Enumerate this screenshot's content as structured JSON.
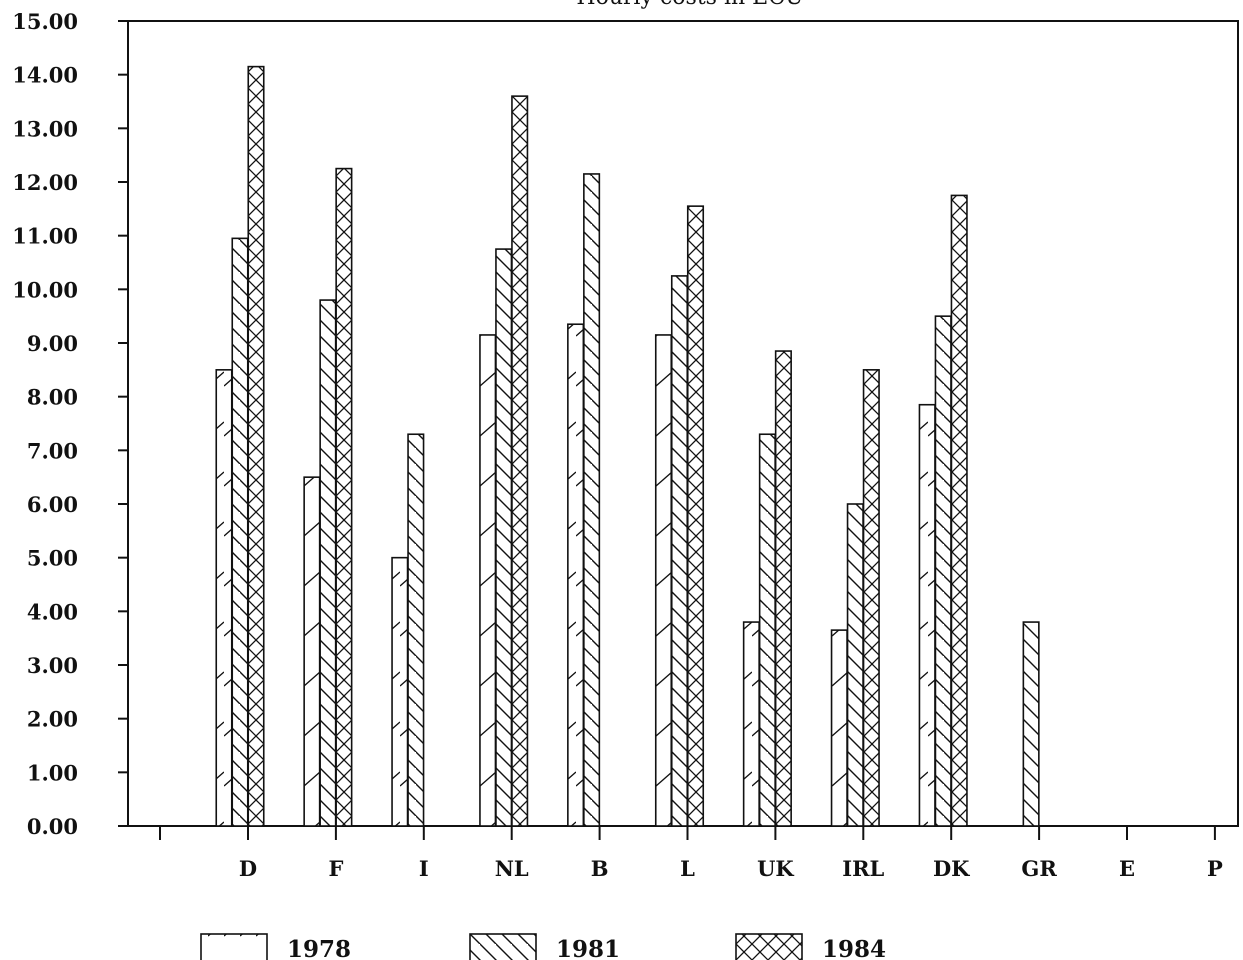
{
  "chart_data": {
    "type": "bar",
    "title": "Hourly costs in ECU",
    "xlabel": "",
    "ylabel": "",
    "ylim": [
      0,
      15
    ],
    "yticks": [
      "0.00",
      "1.00",
      "2.00",
      "3.00",
      "4.00",
      "5.00",
      "6.00",
      "7.00",
      "8.00",
      "9.00",
      "10.00",
      "11.00",
      "12.00",
      "13.00",
      "14.00",
      "15.00"
    ],
    "categories": [
      "D",
      "F",
      "I",
      "NL",
      "B",
      "L",
      "UK",
      "IRL",
      "DK",
      "GR",
      "E",
      "P"
    ],
    "series": [
      {
        "name": "1978",
        "pattern": "single-hatch",
        "values": [
          8.5,
          6.5,
          5.0,
          9.15,
          9.35,
          9.15,
          3.8,
          3.65,
          7.85,
          null,
          null,
          null
        ]
      },
      {
        "name": "1981",
        "pattern": "back-hatch",
        "values": [
          10.95,
          9.8,
          7.3,
          10.75,
          12.15,
          10.25,
          7.3,
          6.0,
          9.5,
          3.8,
          null,
          null
        ]
      },
      {
        "name": "1984",
        "pattern": "cross-hatch",
        "values": [
          14.15,
          12.25,
          null,
          13.6,
          null,
          11.55,
          8.85,
          8.5,
          11.75,
          null,
          null,
          null
        ]
      }
    ],
    "grid": false,
    "legend_position": "bottom"
  }
}
